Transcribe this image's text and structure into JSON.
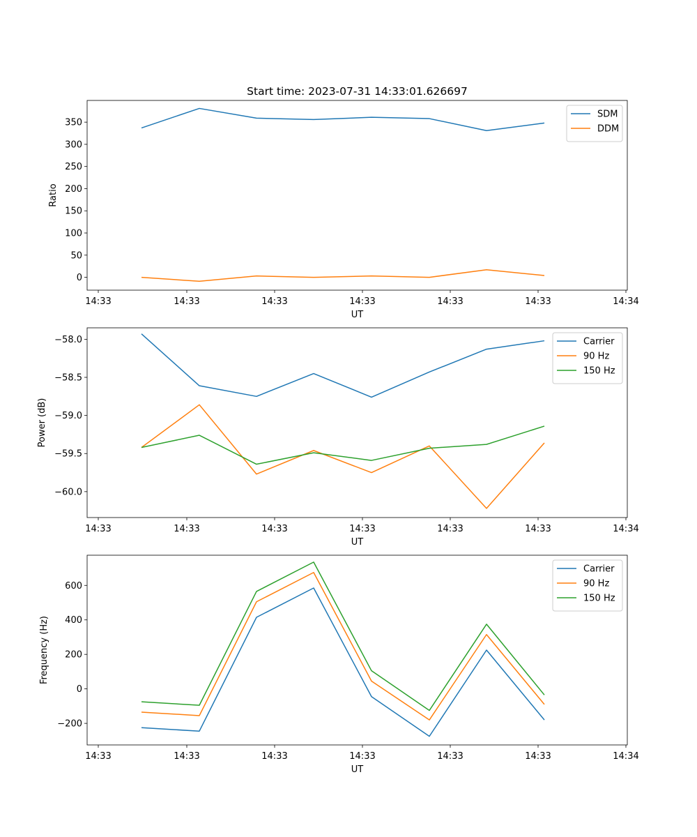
{
  "chart_data": [
    {
      "type": "line",
      "title": "Start time: 2023-07-31 14:33:01.626697",
      "xlabel": "UT",
      "ylabel": "Ratio",
      "x_ticks": [
        "14:33",
        "14:33",
        "14:33",
        "14:33",
        "14:33",
        "14:33",
        "14:34"
      ],
      "y_ticks": [
        0,
        50,
        100,
        150,
        200,
        250,
        300,
        350
      ],
      "ylim": [
        -29,
        399
      ],
      "legend_position": "top-right",
      "series": [
        {
          "name": "SDM",
          "color": "#1f77b4",
          "values": [
            337,
            381,
            359,
            356,
            361,
            358,
            331,
            348
          ]
        },
        {
          "name": "DDM",
          "color": "#ff7f0e",
          "values": [
            0,
            -9,
            3,
            0,
            3,
            0,
            17,
            4
          ]
        }
      ]
    },
    {
      "type": "line",
      "title": "",
      "xlabel": "UT",
      "ylabel": "Power (dB)",
      "x_ticks": [
        "14:33",
        "14:33",
        "14:33",
        "14:33",
        "14:33",
        "14:33",
        "14:34"
      ],
      "y_ticks": [
        "-60.0",
        "-59.5",
        "-59.0",
        "-58.5",
        "-58.0"
      ],
      "ylim": [
        -60.34,
        -57.85
      ],
      "legend_position": "top-right",
      "series": [
        {
          "name": "Carrier",
          "color": "#1f77b4",
          "values": [
            -57.93,
            -58.61,
            -58.75,
            -58.45,
            -58.76,
            -58.43,
            -58.13,
            -58.02
          ]
        },
        {
          "name": "90 Hz",
          "color": "#ff7f0e",
          "values": [
            -59.42,
            -58.86,
            -59.77,
            -59.46,
            -59.75,
            -59.4,
            -60.22,
            -59.36
          ]
        },
        {
          "name": "150 Hz",
          "color": "#2ca02c",
          "values": [
            -59.42,
            -59.26,
            -59.64,
            -59.49,
            -59.59,
            -59.43,
            -59.38,
            -59.14
          ]
        }
      ]
    },
    {
      "type": "line",
      "title": "",
      "xlabel": "UT",
      "ylabel": "Frequency (Hz)",
      "x_ticks": [
        "14:33",
        "14:33",
        "14:33",
        "14:33",
        "14:33",
        "14:33",
        "14:34"
      ],
      "y_ticks": [
        -200,
        0,
        200,
        400,
        600
      ],
      "ylim": [
        -325,
        775
      ],
      "legend_position": "top-right",
      "series": [
        {
          "name": "Carrier",
          "color": "#1f77b4",
          "values": [
            -225,
            -245,
            415,
            585,
            -45,
            -275,
            225,
            -180
          ]
        },
        {
          "name": "90 Hz",
          "color": "#ff7f0e",
          "values": [
            -135,
            -155,
            505,
            675,
            45,
            -180,
            315,
            -90
          ]
        },
        {
          "name": "150 Hz",
          "color": "#2ca02c",
          "values": [
            -75,
            -95,
            565,
            735,
            105,
            -125,
            375,
            -35
          ]
        }
      ]
    }
  ]
}
